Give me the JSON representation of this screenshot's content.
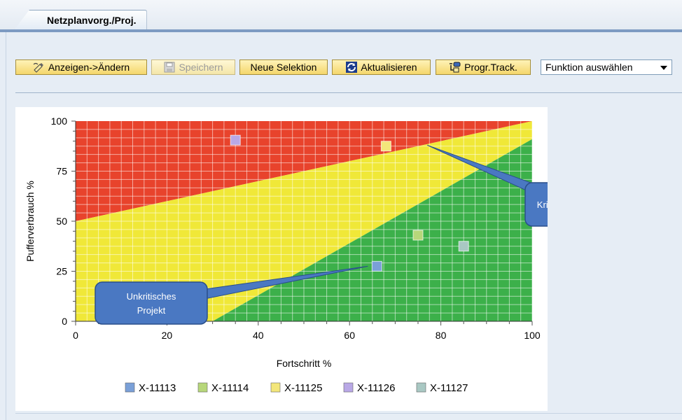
{
  "tab": {
    "label": "Netzplanvorg./Proj."
  },
  "toolbar": {
    "buttons": [
      {
        "label": "Anzeigen->Ändern",
        "icon": "edit-pencil-icon"
      },
      {
        "label": "Speichern",
        "icon": "save-disk-icon",
        "disabled": true
      },
      {
        "label": "Neue Selektion"
      },
      {
        "label": "Aktualisieren",
        "icon": "refresh-icon"
      },
      {
        "label": "Progr.Track.",
        "icon": "progress-track-icon"
      }
    ],
    "function_select": {
      "value": "Funktion auswählen"
    }
  },
  "chart_data": {
    "type": "scatter",
    "xlabel": "Fortschritt %",
    "ylabel": "Pufferverbrauch %",
    "xlim": [
      0,
      100
    ],
    "ylim": [
      0,
      100
    ],
    "xticks": [
      "0",
      "20",
      "40",
      "60",
      "80",
      "100"
    ],
    "yticks": [
      "0",
      "25",
      "50",
      "75",
      "100"
    ],
    "grid": true,
    "zones": {
      "red": "#e8432c",
      "yellow": "#f0e838",
      "green": "#3cb04a",
      "upper_boundary": [
        [
          0,
          50
        ],
        [
          100,
          100
        ]
      ],
      "lower_boundary": [
        [
          30,
          0
        ],
        [
          100,
          91
        ]
      ]
    },
    "series": [
      {
        "name": "X-11113",
        "color": "#7aa0d8",
        "x": 66,
        "y": 27.5
      },
      {
        "name": "X-11114",
        "color": "#b7d77a",
        "x": 75,
        "y": 43
      },
      {
        "name": "X-11125",
        "color": "#f3e67a",
        "x": 68,
        "y": 87.5
      },
      {
        "name": "X-11126",
        "color": "#b9a8e6",
        "x": 35,
        "y": 90.5
      },
      {
        "name": "X-11127",
        "color": "#a9c8c3",
        "x": 85,
        "y": 37.5
      }
    ],
    "legend_position": "bottom",
    "annotations": [
      {
        "text": "Kritisches Projekt",
        "target": [
          77,
          88
        ]
      },
      {
        "text": "Unkritisches Projekt",
        "lines": [
          "Unkritisches",
          "Projekt"
        ],
        "target": [
          64,
          27.5
        ]
      }
    ]
  }
}
